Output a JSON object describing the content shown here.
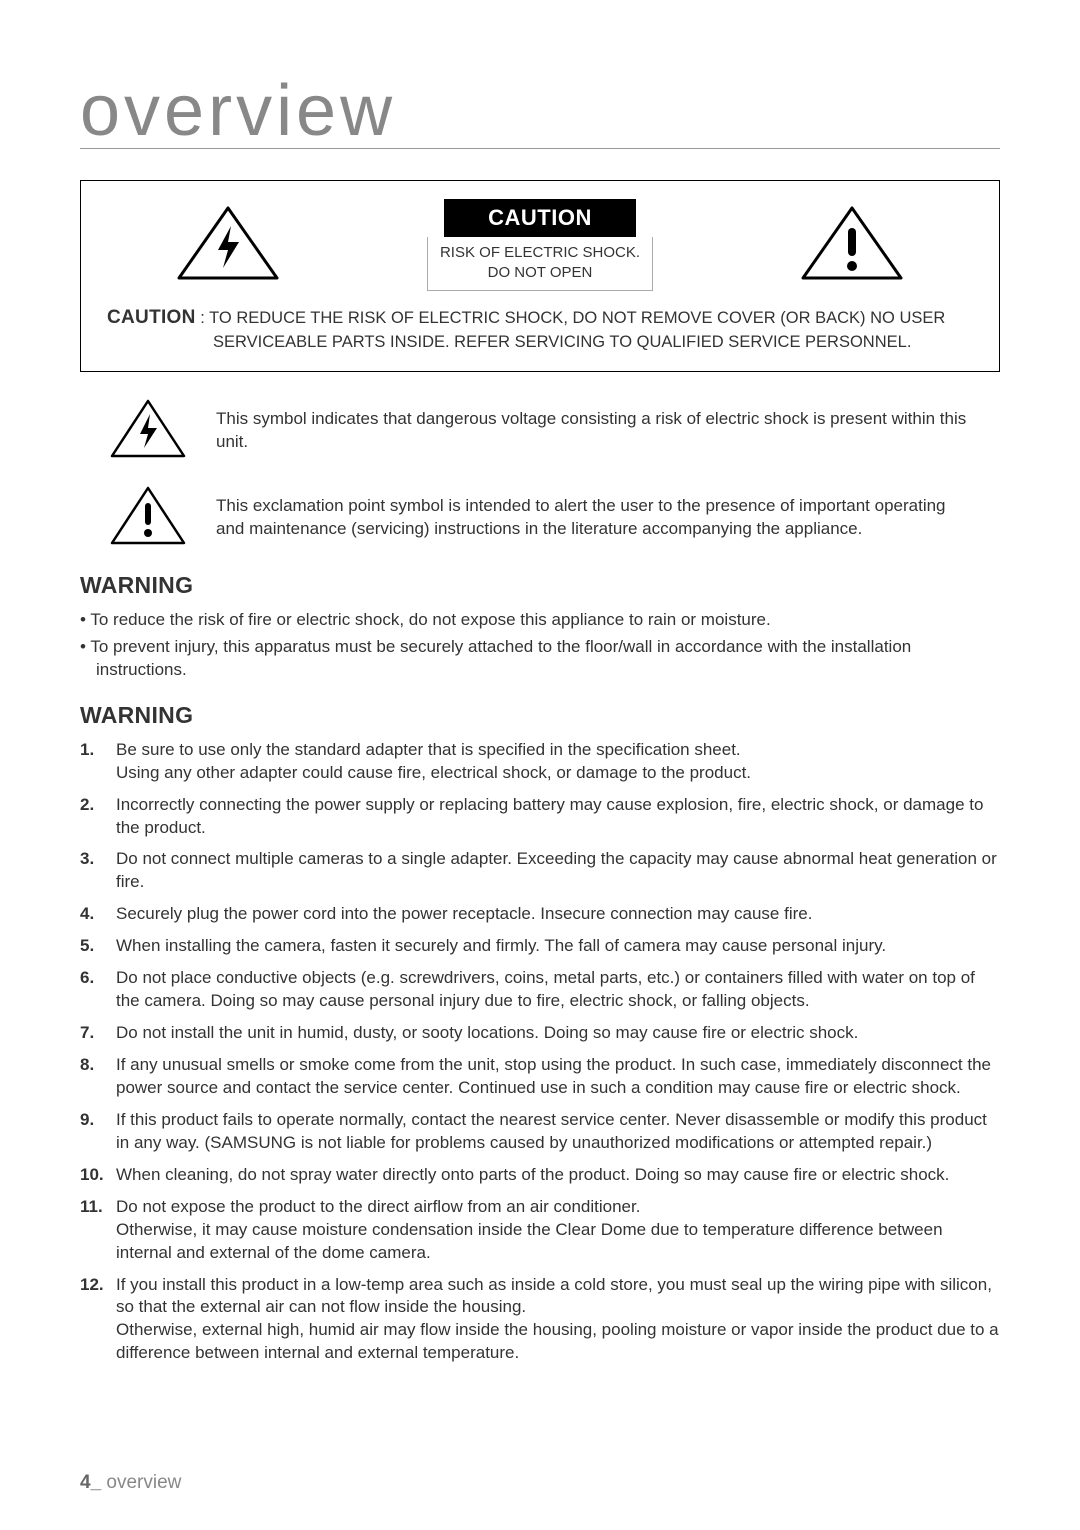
{
  "title": "overview",
  "caution_box": {
    "header": "CAUTION",
    "sub1": "RISK OF ELECTRIC SHOCK.",
    "sub2": "DO NOT OPEN",
    "label": "CAUTION",
    "text1": ": TO REDUCE THE RISK OF ELECTRIC SHOCK, DO NOT REMOVE COVER (OR BACK) NO USER",
    "text2": "SERVICEABLE PARTS INSIDE. REFER SERVICING TO QUALIFIED SERVICE PERSONNEL."
  },
  "symbols": {
    "bolt_desc": "This symbol indicates that dangerous voltage consisting a risk of electric shock is present within this unit.",
    "exclaim_desc": "This exclamation point symbol is intended to alert the user to the presence of important operating and maintenance (servicing) instructions in the literature accompanying the appliance."
  },
  "warning1_heading": "WARNING",
  "warning1_items": [
    "To reduce the risk of fire or electric shock, do not expose this appliance to rain or moisture.",
    "To prevent injury, this apparatus must be securely attached to the floor/wall in accordance with the installation instructions."
  ],
  "warning2_heading": "WARNING",
  "warning2_items": [
    "Be sure to use only the standard adapter that is specified in the specification sheet.\nUsing any other adapter could cause fire, electrical shock, or damage to the product.",
    "Incorrectly connecting the power supply or replacing battery may cause explosion, fire, electric shock, or damage to the product.",
    "Do not connect multiple cameras to a single adapter. Exceeding the capacity may cause abnormal heat generation or fire.",
    "Securely plug the power cord into the power receptacle. Insecure connection may cause fire.",
    "When installing the camera, fasten it securely and firmly. The fall of camera may cause personal injury.",
    "Do not place conductive objects (e.g. screwdrivers, coins, metal parts, etc.) or containers filled with water on top of the camera. Doing so may cause personal injury due to fire, electric shock, or falling objects.",
    "Do not install the unit in humid, dusty, or sooty locations. Doing so may cause fire or electric shock.",
    "If any unusual smells or smoke come from the unit, stop using the product. In such case, immediately disconnect the power source and contact the service center. Continued use in such a condition may cause fire or electric shock.",
    "If this product fails to operate normally, contact the nearest service center. Never disassemble or modify this product in any way. (SAMSUNG is not liable for problems caused by unauthorized modifications or attempted repair.)",
    "When cleaning, do not spray water directly onto parts of the product. Doing so may cause fire or electric shock.",
    "Do not expose the product to the direct airflow from an air conditioner.\nOtherwise, it may cause moisture condensation inside the Clear Dome due to temperature difference between internal and external of the dome camera.",
    "If you install this product in a low-temp area such as inside a cold store, you must seal up the wiring pipe with silicon, so that the external air can not flow inside the housing.\nOtherwise, external high, humid air may flow inside the housing, pooling moisture or vapor inside the product due to a difference between internal and external temperature."
  ],
  "footer": {
    "page": "4_",
    "label": "overview"
  },
  "colors": {
    "text": "#333333",
    "title": "#888888",
    "border": "#000000",
    "bg": "#ffffff"
  },
  "icons": {
    "triangle_stroke": "#000000",
    "triangle_fill": "none",
    "symbol_fill": "#000000"
  }
}
